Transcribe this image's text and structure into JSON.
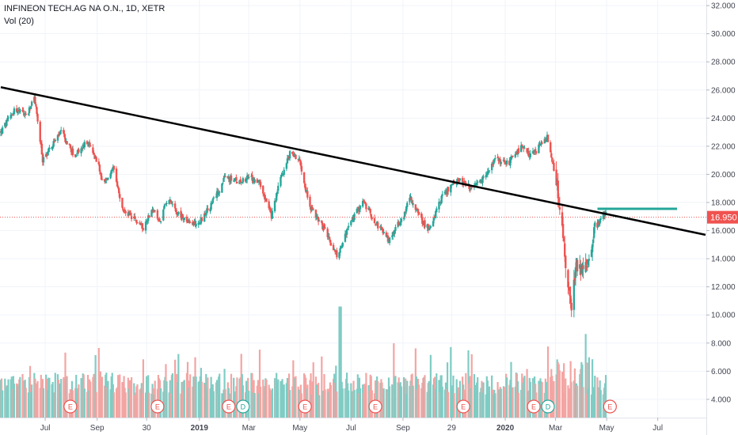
{
  "header": {
    "title": "INFINEON TECH.AG NA O.N., 1D, XETR",
    "volume_label": "Vol (20)"
  },
  "colors": {
    "up": "#26a69a",
    "down": "#ef5350",
    "up_volume": "#7fccc4",
    "down_volume": "#f3a5a3",
    "trendline": "#000000",
    "resistance": "#26a69a",
    "price_line": "#ef5350",
    "grid": "#f0f3fa"
  },
  "chart_data": {
    "type": "candlestick",
    "symbol": "INFINEON TECH.AG NA O.N.",
    "interval": "1D",
    "exchange": "XETR",
    "last_price": "16.950",
    "y_axis_ticks": [
      "32.000",
      "30.000",
      "28.000",
      "26.000",
      "24.000",
      "22.000",
      "20.000",
      "18.000",
      "16.000",
      "14.000",
      "12.000",
      "10.000",
      "8.000",
      "6.000",
      "4.000"
    ],
    "ylim": [
      2.7,
      32.4
    ],
    "x_axis_ticks": [
      "Jul",
      "Sep",
      "30",
      "2019",
      "Mar",
      "May",
      "Jul",
      "Sep",
      "29",
      "2020",
      "Mar",
      "May",
      "Jul"
    ],
    "x_range": [
      "2018-05-09",
      "2020-08-27"
    ],
    "price_anchors": [
      [
        "2018-05-09",
        23.0
      ],
      [
        "2018-05-25",
        24.6
      ],
      [
        "2018-06-10",
        24.2
      ],
      [
        "2018-06-18",
        25.6
      ],
      [
        "2018-06-28",
        21.0
      ],
      [
        "2018-07-08",
        22.0
      ],
      [
        "2018-07-20",
        23.0
      ],
      [
        "2018-08-05",
        21.3
      ],
      [
        "2018-08-20",
        22.3
      ],
      [
        "2018-09-01",
        21.0
      ],
      [
        "2018-09-08",
        19.2
      ],
      [
        "2018-09-20",
        20.4
      ],
      [
        "2018-10-01",
        17.5
      ],
      [
        "2018-10-15",
        16.8
      ],
      [
        "2018-10-27",
        16.2
      ],
      [
        "2018-11-05",
        17.6
      ],
      [
        "2018-11-15",
        16.6
      ],
      [
        "2018-11-25",
        18.5
      ],
      [
        "2018-12-05",
        17.3
      ],
      [
        "2018-12-20",
        16.5
      ],
      [
        "2019-01-01",
        16.6
      ],
      [
        "2019-01-15",
        17.8
      ],
      [
        "2019-02-01",
        19.8
      ],
      [
        "2019-02-15",
        19.5
      ],
      [
        "2019-03-01",
        19.8
      ],
      [
        "2019-03-15",
        19.3
      ],
      [
        "2019-03-28",
        17.0
      ],
      [
        "2019-04-08",
        19.8
      ],
      [
        "2019-04-20",
        21.6
      ],
      [
        "2019-05-01",
        21.0
      ],
      [
        "2019-05-12",
        17.8
      ],
      [
        "2019-05-28",
        16.3
      ],
      [
        "2019-06-07",
        15.1
      ],
      [
        "2019-06-15",
        14.2
      ],
      [
        "2019-06-28",
        16.3
      ],
      [
        "2019-07-15",
        18.1
      ],
      [
        "2019-07-28",
        16.8
      ],
      [
        "2019-08-15",
        15.3
      ],
      [
        "2019-09-01",
        17.0
      ],
      [
        "2019-09-10",
        18.4
      ],
      [
        "2019-09-22",
        16.8
      ],
      [
        "2019-10-02",
        16.1
      ],
      [
        "2019-10-18",
        18.5
      ],
      [
        "2019-11-08",
        19.7
      ],
      [
        "2019-11-22",
        18.9
      ],
      [
        "2019-12-05",
        19.6
      ],
      [
        "2019-12-20",
        21.0
      ],
      [
        "2020-01-05",
        20.8
      ],
      [
        "2020-01-20",
        21.9
      ],
      [
        "2020-02-01",
        21.3
      ],
      [
        "2020-02-20",
        22.6
      ],
      [
        "2020-03-01",
        19.8
      ],
      [
        "2020-03-08",
        16.6
      ],
      [
        "2020-03-14",
        13.2
      ],
      [
        "2020-03-19",
        10.5
      ],
      [
        "2020-03-26",
        13.5
      ],
      [
        "2020-04-05",
        13.2
      ],
      [
        "2020-04-15",
        15.7
      ],
      [
        "2020-04-22",
        16.6
      ],
      [
        "2020-04-30",
        17.2
      ]
    ],
    "trendline": {
      "start": [
        "2018-05-09",
        26.2
      ],
      "end": [
        "2020-08-27",
        15.7
      ]
    },
    "resistance_line": {
      "start": [
        "2020-04-20",
        17.55
      ],
      "end": [
        "2020-08-27",
        17.55
      ]
    },
    "events": [
      {
        "type": "E",
        "date": "2018-07-31"
      },
      {
        "type": "E",
        "date": "2018-11-12"
      },
      {
        "type": "E",
        "date": "2019-02-05"
      },
      {
        "type": "D",
        "date": "2019-02-22"
      },
      {
        "type": "E",
        "date": "2019-05-07"
      },
      {
        "type": "E",
        "date": "2019-07-30"
      },
      {
        "type": "E",
        "date": "2019-11-12"
      },
      {
        "type": "E",
        "date": "2020-02-04"
      },
      {
        "type": "D",
        "date": "2020-02-21"
      },
      {
        "type": "E",
        "date": "2020-05-05"
      }
    ]
  }
}
